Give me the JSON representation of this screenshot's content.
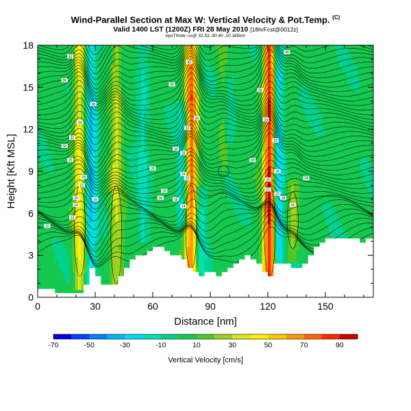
{
  "header": {
    "title": "Wind-Parallel Section at Max W: Vertical Velocity & Pot.Temp.",
    "copyright": "(C)",
    "subtitle": "Valid 1400 LST (1200Z) FRI 28 May 2010",
    "subtitle_tag": "[18hrFcst@0012z]",
    "location": "bpxThrwe~ss@ 32.53,-90.40 ,10.185km"
  },
  "chart_data": {
    "type": "heatmap",
    "title": "Wind-Parallel Section at Max W: Vertical Velocity & Pot.Temp.",
    "xlabel": "Distance [nm]",
    "ylabel": "Height [Kft MSL]",
    "xlim": [
      0,
      175
    ],
    "ylim": [
      0,
      18
    ],
    "x_ticks": [
      0,
      30,
      60,
      90,
      120,
      150
    ],
    "y_ticks": [
      0,
      3,
      6,
      9,
      12,
      15,
      18
    ],
    "colorbar": {
      "label": "Vertical Velocity [cm/s]",
      "tick_labels": [
        "-70",
        "-50",
        "-30",
        "-10",
        "10",
        "30",
        "50",
        "70",
        "90"
      ],
      "bounds": [
        -70,
        -60,
        -50,
        -40,
        -30,
        -20,
        -10,
        0,
        10,
        20,
        30,
        40,
        50,
        60,
        70,
        80,
        90,
        100
      ],
      "colors": [
        "#0000e6",
        "#0040ff",
        "#0080ff",
        "#00b4ff",
        "#00dcf0",
        "#00e0b4",
        "#00d28c",
        "#14c850",
        "#50c828",
        "#9ad21e",
        "#dce61e",
        "#ffee00",
        "#ffc800",
        "#ff9600",
        "#ff6400",
        "#ff2800",
        "#c80000"
      ]
    },
    "terrain_profile": {
      "x": [
        0,
        8,
        10,
        15,
        20,
        25,
        26,
        28,
        30,
        32,
        34,
        38,
        40,
        42,
        45,
        50,
        55,
        60,
        65,
        70,
        75,
        78,
        80,
        85,
        90,
        95,
        100,
        105,
        110,
        115,
        118,
        120,
        122,
        125,
        130,
        135,
        140,
        145,
        150,
        155,
        160,
        165,
        170,
        175
      ],
      "height": [
        0.6,
        0.6,
        0.3,
        0.3,
        0.3,
        0.5,
        1.5,
        2.2,
        2.0,
        1.2,
        0.8,
        1.0,
        0.7,
        1.2,
        2.0,
        2.8,
        3.0,
        3.5,
        3.5,
        3.0,
        2.8,
        2.5,
        2.0,
        1.5,
        1.8,
        1.5,
        2.0,
        2.5,
        3.0,
        2.5,
        1.8,
        1.2,
        1.5,
        2.5,
        2.5,
        2.0,
        2.5,
        3.5,
        4.2,
        4.2,
        4.2,
        4.2,
        4.0,
        4.2
      ]
    },
    "updrafts": [
      {
        "x": 22,
        "h_low": 1.5,
        "h_high": 18,
        "peak": 40
      },
      {
        "x": 41,
        "h_low": 1.0,
        "h_high": 18,
        "peak": 28
      },
      {
        "x": 80,
        "h_low": 2.0,
        "h_high": 18,
        "peak": 75
      },
      {
        "x": 97,
        "h_low": 10.0,
        "h_high": 18,
        "peak": 12
      },
      {
        "x": 121,
        "h_low": 1.5,
        "h_high": 18,
        "peak": 95
      },
      {
        "x": 133,
        "h_low": 3.5,
        "h_high": 7.5,
        "peak": 22
      }
    ],
    "downdrafts": [
      {
        "x": 28,
        "h_low": 0.8,
        "h_high": 18,
        "peak": -35
      },
      {
        "x": 55,
        "h_low": 5.0,
        "h_high": 18,
        "peak": -18
      },
      {
        "x": 76,
        "h_low": 6.0,
        "h_high": 13.0,
        "peak": -25
      },
      {
        "x": 85,
        "h_low": 2.5,
        "h_high": 7.0,
        "peak": -22
      },
      {
        "x": 125,
        "h_low": 2.0,
        "h_high": 18,
        "peak": -40
      },
      {
        "x": 100,
        "h_low": 12.0,
        "h_high": 18,
        "peak": -12
      }
    ],
    "isentrope_labels": [
      {
        "x": 17,
        "h": 17.2,
        "text": "40"
      },
      {
        "x": 14,
        "h": 15.5,
        "text": "36"
      },
      {
        "x": 29,
        "h": 13.8,
        "text": "38"
      },
      {
        "x": 22,
        "h": 12.5,
        "text": "34"
      },
      {
        "x": 18,
        "h": 11.4,
        "text": "32"
      },
      {
        "x": 14,
        "h": 10.8,
        "text": "30"
      },
      {
        "x": 17,
        "h": 9.8,
        "text": "26"
      },
      {
        "x": 24,
        "h": 8.6,
        "text": "24"
      },
      {
        "x": 23,
        "h": 8.0,
        "text": "22"
      },
      {
        "x": 20,
        "h": 7.1,
        "text": "20"
      },
      {
        "x": 20,
        "h": 6.6,
        "text": "18"
      },
      {
        "x": 30,
        "h": 7.0,
        "text": "16"
      },
      {
        "x": 18,
        "h": 5.7,
        "text": "14"
      },
      {
        "x": 5,
        "h": 5.1,
        "text": "10"
      },
      {
        "x": 79,
        "h": 16.8,
        "text": "40"
      },
      {
        "x": 70,
        "h": 15.2,
        "text": "36"
      },
      {
        "x": 83,
        "h": 12.8,
        "text": "34"
      },
      {
        "x": 78,
        "h": 12.1,
        "text": "32"
      },
      {
        "x": 72,
        "h": 10.6,
        "text": "30"
      },
      {
        "x": 76,
        "h": 10.3,
        "text": "28"
      },
      {
        "x": 60,
        "h": 9.2,
        "text": "26"
      },
      {
        "x": 76,
        "h": 8.8,
        "text": "24"
      },
      {
        "x": 78,
        "h": 8.5,
        "text": "22"
      },
      {
        "x": 66,
        "h": 7.6,
        "text": "20"
      },
      {
        "x": 64,
        "h": 7.1,
        "text": "18"
      },
      {
        "x": 72,
        "h": 7.0,
        "text": "16"
      },
      {
        "x": 76,
        "h": 6.5,
        "text": "14"
      },
      {
        "x": 130,
        "h": 17.5,
        "text": "40"
      },
      {
        "x": 116,
        "h": 14.8,
        "text": "36"
      },
      {
        "x": 119,
        "h": 12.7,
        "text": "34"
      },
      {
        "x": 124,
        "h": 11.2,
        "text": "32"
      },
      {
        "x": 112,
        "h": 9.8,
        "text": "30"
      },
      {
        "x": 125,
        "h": 9.0,
        "text": "28"
      },
      {
        "x": 120,
        "h": 8.4,
        "text": "26"
      },
      {
        "x": 140,
        "h": 8.5,
        "text": "24"
      },
      {
        "x": 120,
        "h": 7.7,
        "text": "22"
      },
      {
        "x": 125,
        "h": 7.4,
        "text": "20"
      },
      {
        "x": 128,
        "h": 7.1,
        "text": "18"
      },
      {
        "x": 133,
        "h": 6.6,
        "text": "16"
      }
    ]
  }
}
